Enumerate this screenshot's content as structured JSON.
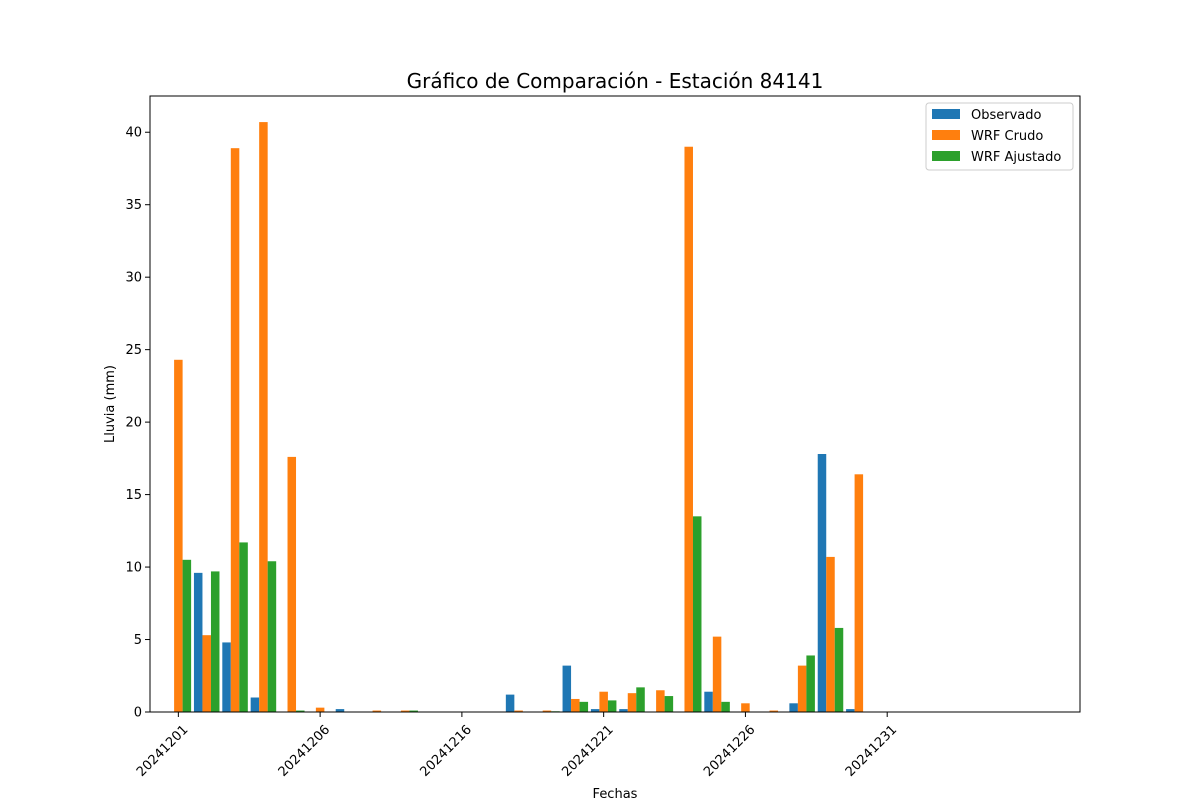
{
  "chart_data": {
    "type": "bar",
    "title": "Gráfico de Comparación - Estación 84141",
    "xlabel": "Fechas",
    "ylabel": "Lluvia (mm)",
    "ylim": [
      0,
      42.5
    ],
    "x_range": [
      -1,
      31.8
    ],
    "legend_position": "top-right",
    "grid": false,
    "y_ticks": [
      0,
      5,
      10,
      15,
      20,
      25,
      30,
      35,
      40
    ],
    "x_ticks": [
      {
        "pos": 0,
        "label": "20241201"
      },
      {
        "pos": 5,
        "label": "20241206"
      },
      {
        "pos": 10,
        "label": "20241216"
      },
      {
        "pos": 15,
        "label": "20241221"
      },
      {
        "pos": 20,
        "label": "20241226"
      },
      {
        "pos": 25,
        "label": "20241231"
      }
    ],
    "series": [
      {
        "name": "Observado",
        "color": "#1f77b4",
        "values": [
          0,
          9.6,
          4.8,
          1.0,
          0,
          0,
          0.2,
          0,
          0,
          0,
          0,
          0,
          1.2,
          0,
          3.2,
          0.2,
          0.2,
          0,
          0,
          1.4,
          0,
          0,
          0.6,
          17.8,
          0.2
        ]
      },
      {
        "name": "WRF Crudo",
        "color": "#ff7f0e",
        "values": [
          24.3,
          5.3,
          38.9,
          40.7,
          17.6,
          0.3,
          0,
          0.1,
          0.1,
          0,
          0,
          0,
          0.1,
          0.1,
          0.9,
          1.4,
          1.3,
          1.5,
          39.0,
          5.2,
          0.6,
          0.1,
          3.2,
          10.7,
          16.4
        ]
      },
      {
        "name": "WRF Ajustado",
        "color": "#2ca02c",
        "values": [
          10.5,
          9.7,
          11.7,
          10.4,
          0.1,
          0,
          0,
          0,
          0.1,
          0,
          0,
          0,
          0,
          0.05,
          0.7,
          0.8,
          1.7,
          1.1,
          13.5,
          0.7,
          0,
          0,
          3.9,
          5.8,
          0
        ]
      }
    ]
  }
}
